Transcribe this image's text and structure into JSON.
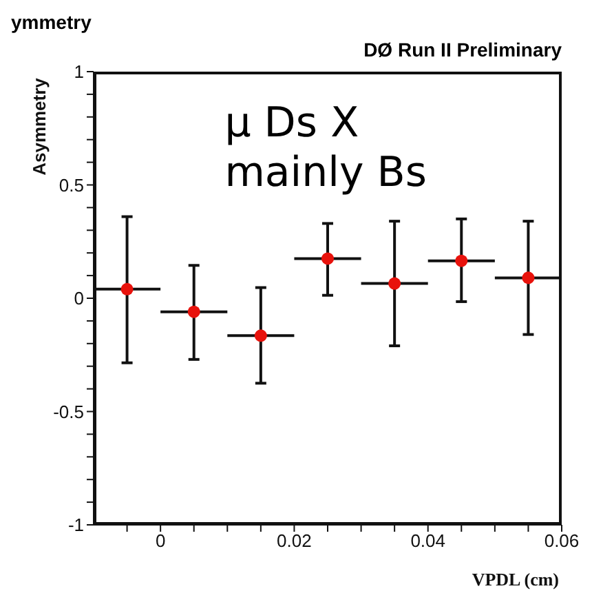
{
  "chart_data": {
    "type": "scatter",
    "title": "ymmetry",
    "subtitle": "DØ Run II Preliminary",
    "ylabel": "Asymmetry",
    "xlabel": "VPDL (cm)",
    "annotations": [
      "μ Ds X\nmainly Bs"
    ],
    "x": [
      -0.005,
      0.005,
      0.015,
      0.025,
      0.035,
      0.045,
      0.055
    ],
    "series": [
      {
        "color": "#e8120c",
        "values": [
          0.04,
          -0.06,
          -0.165,
          0.175,
          0.065,
          0.165,
          0.09
        ],
        "errors": [
          [
            -0.285,
            0.36
          ],
          [
            -0.27,
            0.145
          ],
          [
            -0.375,
            0.047
          ],
          [
            0.013,
            0.33
          ],
          [
            -0.21,
            0.34
          ],
          [
            -0.015,
            0.35
          ],
          [
            -0.16,
            0.34
          ]
        ],
        "xerrors": [
          0.005,
          0.005,
          0.005,
          0.005,
          0.005,
          0.005,
          0.005
        ]
      }
    ],
    "xlim": [
      -0.01,
      0.06
    ],
    "xticks": [
      {
        "value": -0.005,
        "label": null
      },
      0,
      {
        "value": 0.005,
        "label": null
      },
      {
        "value": 0.01,
        "label": null
      },
      {
        "value": 0.015,
        "label": null
      },
      0.02,
      {
        "value": 0.025,
        "label": null
      },
      {
        "value": 0.03,
        "label": null
      },
      {
        "value": 0.035,
        "label": null
      },
      0.04,
      {
        "value": 0.045,
        "label": null
      },
      {
        "value": 0.05,
        "label": null
      },
      {
        "value": 0.055,
        "label": null
      },
      0.06
    ],
    "ylim": [
      -1,
      1
    ],
    "yticks": [
      -1,
      {
        "value": -0.9,
        "label": null
      },
      {
        "value": -0.8,
        "label": null
      },
      {
        "value": -0.7,
        "label": null
      },
      {
        "value": -0.6,
        "label": null
      },
      -0.5,
      {
        "value": -0.4,
        "label": null
      },
      {
        "value": -0.3,
        "label": null
      },
      {
        "value": -0.2,
        "label": null
      },
      {
        "value": -0.1,
        "label": null
      },
      0,
      {
        "value": 0.1,
        "label": null
      },
      {
        "value": 0.2,
        "label": null
      },
      {
        "value": 0.3,
        "label": null
      },
      {
        "value": 0.4,
        "label": null
      },
      0.5,
      {
        "value": 0.6,
        "label": null
      },
      {
        "value": 0.7,
        "label": null
      },
      {
        "value": 0.8,
        "label": null
      },
      {
        "value": 0.9,
        "label": null
      },
      1
    ],
    "marker": "circle"
  }
}
